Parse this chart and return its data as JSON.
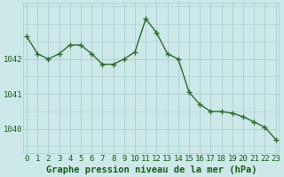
{
  "x": [
    0,
    1,
    2,
    3,
    4,
    5,
    6,
    7,
    8,
    9,
    10,
    11,
    12,
    13,
    14,
    15,
    16,
    17,
    18,
    19,
    20,
    21,
    22,
    23
  ],
  "y": [
    1042.65,
    1042.15,
    1042.0,
    1042.15,
    1042.4,
    1042.4,
    1042.15,
    1041.85,
    1041.85,
    1042.0,
    1042.2,
    1043.15,
    1042.75,
    1042.15,
    1042.0,
    1041.05,
    1040.7,
    1040.5,
    1040.5,
    1040.45,
    1040.35,
    1040.2,
    1040.05,
    1039.7
  ],
  "line_color": "#2d6a2d",
  "marker_color": "#2d6a2d",
  "bg_color": "#cce8e8",
  "grid_color_major": "#aacece",
  "grid_color_minor": "#bbdada",
  "axis_label_color": "#1a5c1a",
  "title": "Graphe pression niveau de la mer (hPa)",
  "ylabel_ticks": [
    1040,
    1041,
    1042
  ],
  "xlim": [
    -0.3,
    23.3
  ],
  "ylim": [
    1039.3,
    1043.6
  ],
  "xtick_labels": [
    "0",
    "1",
    "2",
    "3",
    "4",
    "5",
    "6",
    "7",
    "8",
    "9",
    "10",
    "11",
    "12",
    "13",
    "14",
    "15",
    "16",
    "17",
    "18",
    "19",
    "20",
    "21",
    "22",
    "23"
  ],
  "title_fontsize": 7.5,
  "tick_fontsize": 6.5,
  "marker_size": 2.5,
  "line_width": 1.0
}
